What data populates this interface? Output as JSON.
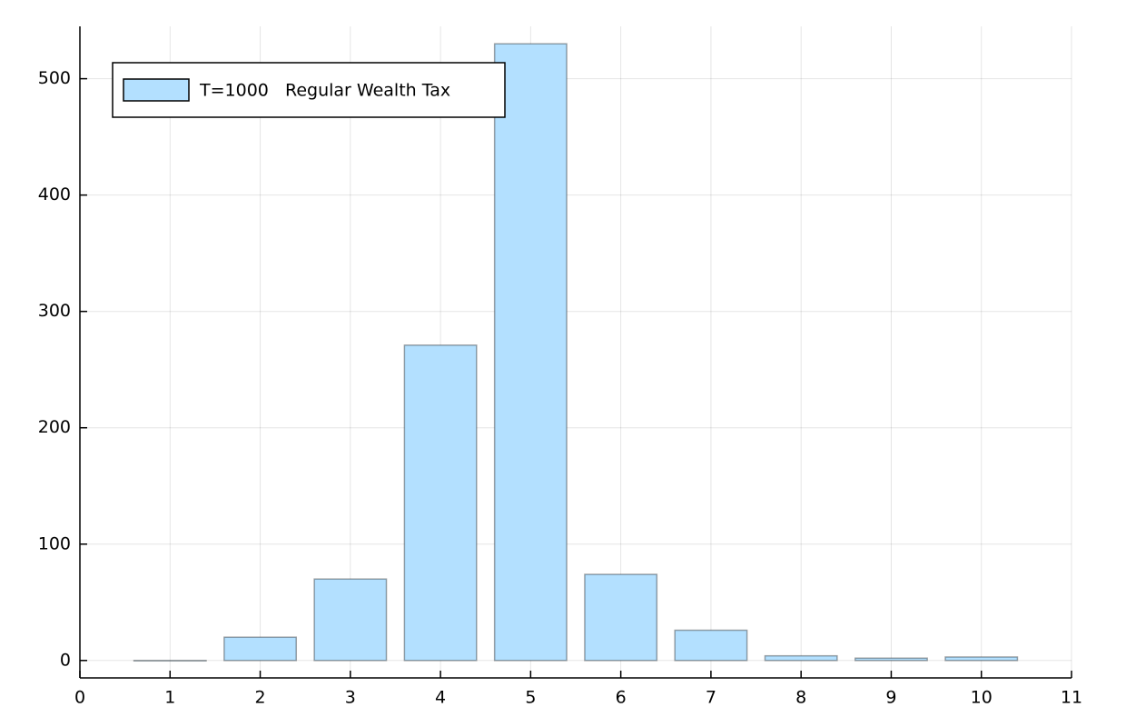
{
  "chart_data": {
    "type": "bar",
    "x": [
      1,
      2,
      3,
      4,
      5,
      6,
      7,
      8,
      9,
      10
    ],
    "series": [
      {
        "name": "T=1000   Regular Wealth Tax",
        "color": "#b3e0ff",
        "values": [
          0,
          20,
          70,
          271,
          530,
          74,
          26,
          4,
          2,
          3
        ]
      }
    ],
    "xlim": [
      0,
      11
    ],
    "xticks": [
      0,
      1,
      2,
      3,
      4,
      5,
      6,
      7,
      8,
      9,
      10,
      11
    ],
    "ylim": [
      -15,
      545
    ],
    "yticks": [
      0,
      100,
      200,
      300,
      400,
      500
    ],
    "grid": true,
    "legend": "top-left"
  }
}
